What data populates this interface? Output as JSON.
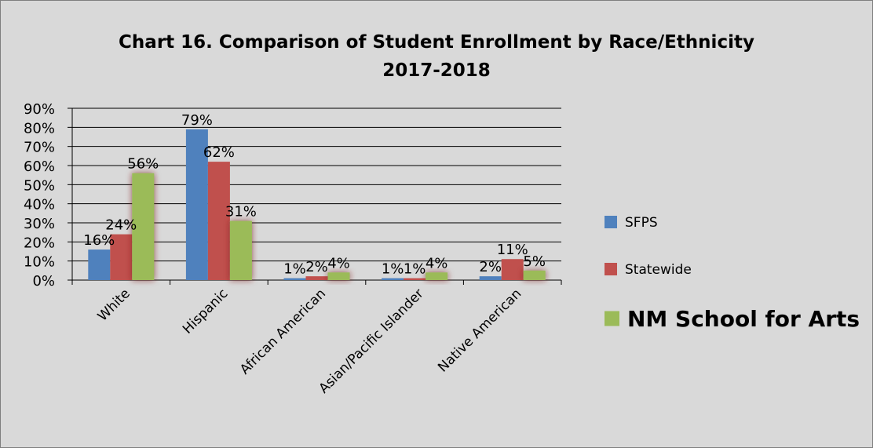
{
  "chart_data": {
    "type": "bar",
    "title": "Chart 16. Comparison of Student Enrollment by Race/Ethnicity",
    "subtitle": "2017-2018",
    "categories": [
      "White",
      "Hispanic",
      "African American",
      "Asian/Pacific Islander",
      "Native American"
    ],
    "series": [
      {
        "name": "SFPS",
        "values": [
          16,
          79,
          1,
          1,
          2
        ],
        "labels": [
          "16%",
          "79%",
          "1%",
          "1%",
          "2%"
        ],
        "color": "#4f81bd"
      },
      {
        "name": "Statewide",
        "values": [
          24,
          62,
          2,
          1,
          11
        ],
        "labels": [
          "24%",
          "62%",
          "2%",
          "1%",
          "11%"
        ],
        "color": "#c0504d"
      },
      {
        "name": "NM School for Arts",
        "values": [
          56,
          31,
          4,
          4,
          5
        ],
        "labels": [
          "56%",
          "31%",
          "4%",
          "4%",
          "5%"
        ],
        "color": "#9bbb59",
        "highlight_color": "#7f1f1f"
      }
    ],
    "ylim": [
      0,
      90
    ],
    "yticks": [
      "0%",
      "10%",
      "20%",
      "30%",
      "40%",
      "50%",
      "60%",
      "70%",
      "80%",
      "90%"
    ],
    "grid": true,
    "legend_position": "right"
  }
}
